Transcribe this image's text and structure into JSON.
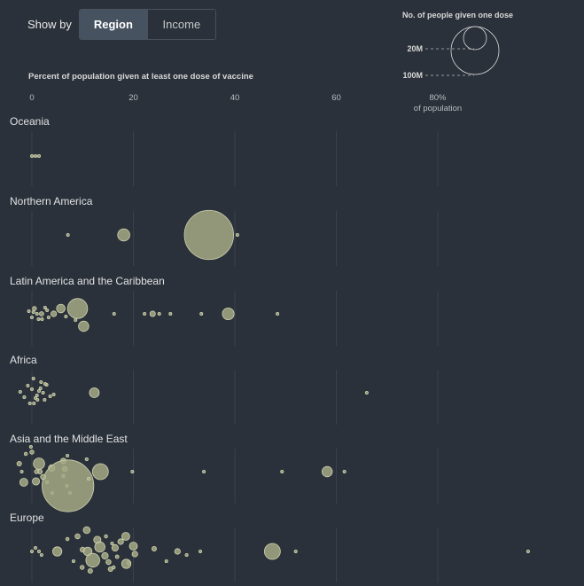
{
  "controls": {
    "label": "Show by",
    "options": [
      {
        "label": "Region",
        "active": true
      },
      {
        "label": "Income",
        "active": false
      }
    ]
  },
  "chart_data": {
    "type": "scatter",
    "title": "Percent of population given at least one dose of vaccine",
    "x_ticks": [
      "0",
      "20",
      "40",
      "60",
      "80%"
    ],
    "x_tick_values": [
      0,
      20,
      40,
      60,
      80
    ],
    "x_unit_label": "of population",
    "xlim": [
      0,
      100
    ],
    "size_legend": {
      "title": "No. of people given one dose",
      "entries": [
        {
          "label": "20M",
          "value_millions": 20
        },
        {
          "label": "100M",
          "value_millions": 100
        }
      ]
    },
    "colors": {
      "bubble_fill": "#a5a985",
      "bubble_stroke": "#cfd3b0",
      "background": "#2b313a"
    },
    "groups": [
      {
        "name": "Oceania",
        "points": [
          {
            "x": 0,
            "m": 0.02
          },
          {
            "x": 0.7,
            "m": 0.02
          },
          {
            "x": 1.4,
            "m": 0.05
          }
        ]
      },
      {
        "name": "Northern America",
        "points": [
          {
            "x": 7.1,
            "m": 0.01
          },
          {
            "x": 18.1,
            "m": 7.0
          },
          {
            "x": 34.9,
            "m": 114
          },
          {
            "x": 40.5,
            "m": 0.02
          }
        ]
      },
      {
        "name": "Latin America and the Caribbean",
        "points": [
          {
            "x": -0.6,
            "m": 0.05
          },
          {
            "x": 0,
            "m": 0.1
          },
          {
            "x": 0.5,
            "m": 0.8
          },
          {
            "x": 1.3,
            "m": 0.1
          },
          {
            "x": 1.9,
            "m": 0.9
          },
          {
            "x": 2.6,
            "m": 0.1
          },
          {
            "x": 3.3,
            "m": 0.2
          },
          {
            "x": 4.3,
            "m": 1.5
          },
          {
            "x": 5.7,
            "m": 3.5
          },
          {
            "x": 6.7,
            "m": 0.1
          },
          {
            "x": 1.0,
            "m": 0.1
          },
          {
            "x": 0.3,
            "m": 0.05
          },
          {
            "x": 8.6,
            "m": 0.2
          },
          {
            "x": 9.0,
            "m": 19
          },
          {
            "x": 10.2,
            "m": 5.0
          },
          {
            "x": 16.2,
            "m": 0.02
          },
          {
            "x": 22.2,
            "m": 0.05
          },
          {
            "x": 23.8,
            "m": 1.4
          },
          {
            "x": 25.1,
            "m": 0.3
          },
          {
            "x": 27.3,
            "m": 0.1
          },
          {
            "x": 33.4,
            "m": 0.02
          },
          {
            "x": 38.7,
            "m": 6.5
          },
          {
            "x": 48.4,
            "m": 0.02
          },
          {
            "x": 2.0,
            "m": 0.1
          },
          {
            "x": 3.0,
            "m": 0.05
          }
        ]
      },
      {
        "name": "Africa",
        "points": [
          {
            "x": -2.3,
            "m": 0.05
          },
          {
            "x": -1.5,
            "m": 0.1
          },
          {
            "x": -0.8,
            "m": 0.2
          },
          {
            "x": 0,
            "m": 0.3
          },
          {
            "x": 0.7,
            "m": 0.2
          },
          {
            "x": 1.4,
            "m": 0.3
          },
          {
            "x": 2.2,
            "m": 0.2
          },
          {
            "x": 2.9,
            "m": 0.2
          },
          {
            "x": 3.6,
            "m": 0.1
          },
          {
            "x": 4.3,
            "m": 0.05
          },
          {
            "x": -0.4,
            "m": 0.1
          },
          {
            "x": 0.4,
            "m": 0.1
          },
          {
            "x": 1.1,
            "m": 0.1
          },
          {
            "x": 1.8,
            "m": 0.1
          },
          {
            "x": 2.5,
            "m": 0.1
          },
          {
            "x": 1.0,
            "m": 0.2
          },
          {
            "x": 1.7,
            "m": 0.2
          },
          {
            "x": 0.3,
            "m": 0.05
          },
          {
            "x": 2.6,
            "m": 0.05
          },
          {
            "x": 12.3,
            "m": 4.5
          },
          {
            "x": 66.0,
            "m": 0.02
          }
        ]
      },
      {
        "name": "Asia and the Middle East",
        "points": [
          {
            "x": -2.0,
            "m": 0.1
          },
          {
            "x": -2.5,
            "m": 1.0
          },
          {
            "x": -1.2,
            "m": 0.5
          },
          {
            "x": -1.6,
            "m": 3.0
          },
          {
            "x": 0.8,
            "m": 2.5
          },
          {
            "x": 1.4,
            "m": 6.0
          },
          {
            "x": 1.6,
            "m": 1.0
          },
          {
            "x": 0,
            "m": 0.8
          },
          {
            "x": -0.2,
            "m": 0.4
          },
          {
            "x": 3.9,
            "m": 2.0
          },
          {
            "x": 4.0,
            "m": 0.3
          },
          {
            "x": 3.0,
            "m": 0.5
          },
          {
            "x": 6.2,
            "m": 1.5
          },
          {
            "x": 6.5,
            "m": 1.2
          },
          {
            "x": 6.2,
            "m": 0.5
          },
          {
            "x": 7.5,
            "m": 0.4
          },
          {
            "x": 6.9,
            "m": 0.3
          },
          {
            "x": 7.0,
            "m": 0.2
          },
          {
            "x": 7.1,
            "m": 126
          },
          {
            "x": 10.8,
            "m": 0.4
          },
          {
            "x": 11.2,
            "m": 0.4
          },
          {
            "x": 13.5,
            "m": 12
          },
          {
            "x": 19.8,
            "m": 0.2
          },
          {
            "x": 33.9,
            "m": 0.3
          },
          {
            "x": 49.3,
            "m": 0.1
          },
          {
            "x": 58.2,
            "m": 5.0
          },
          {
            "x": 61.6,
            "m": 0.3
          },
          {
            "x": 0.9,
            "m": 0.8
          },
          {
            "x": 2.2,
            "m": 1.2
          }
        ]
      },
      {
        "name": "Europe",
        "points": [
          {
            "x": 0,
            "m": 0.02
          },
          {
            "x": 0.7,
            "m": 0.1
          },
          {
            "x": 1.4,
            "m": 0.05
          },
          {
            "x": 1.9,
            "m": 0.2
          },
          {
            "x": 5.0,
            "m": 4.0
          },
          {
            "x": 7.0,
            "m": 0.5
          },
          {
            "x": 8.2,
            "m": 0.2
          },
          {
            "x": 9.0,
            "m": 1.2
          },
          {
            "x": 10.0,
            "m": 1.2
          },
          {
            "x": 9.9,
            "m": 0.8
          },
          {
            "x": 11.0,
            "m": 3.5
          },
          {
            "x": 10.8,
            "m": 2.2
          },
          {
            "x": 11.5,
            "m": 1.0
          },
          {
            "x": 12.9,
            "m": 2.5
          },
          {
            "x": 12.0,
            "m": 9.0
          },
          {
            "x": 13.4,
            "m": 5.0
          },
          {
            "x": 14.4,
            "m": 2.0
          },
          {
            "x": 14.6,
            "m": 0.5
          },
          {
            "x": 15.1,
            "m": 1.2
          },
          {
            "x": 15.5,
            "m": 1.0
          },
          {
            "x": 15.8,
            "m": 0.4
          },
          {
            "x": 16.4,
            "m": 2.0
          },
          {
            "x": 16.1,
            "m": 0.5
          },
          {
            "x": 16.8,
            "m": 0.6
          },
          {
            "x": 17.5,
            "m": 1.5
          },
          {
            "x": 18.5,
            "m": 3.0
          },
          {
            "x": 19.1,
            "m": 0.8
          },
          {
            "x": 18.6,
            "m": 4.0
          },
          {
            "x": 20.3,
            "m": 1.5
          },
          {
            "x": 20.0,
            "m": 3.0
          },
          {
            "x": 24.1,
            "m": 1.0
          },
          {
            "x": 26.5,
            "m": 0.2
          },
          {
            "x": 28.7,
            "m": 1.5
          },
          {
            "x": 30.5,
            "m": 0.4
          },
          {
            "x": 33.2,
            "m": 0.1
          },
          {
            "x": 47.4,
            "m": 12.0
          },
          {
            "x": 52.0,
            "m": 0.1
          },
          {
            "x": 97.8,
            "m": 0.02
          }
        ]
      }
    ]
  }
}
